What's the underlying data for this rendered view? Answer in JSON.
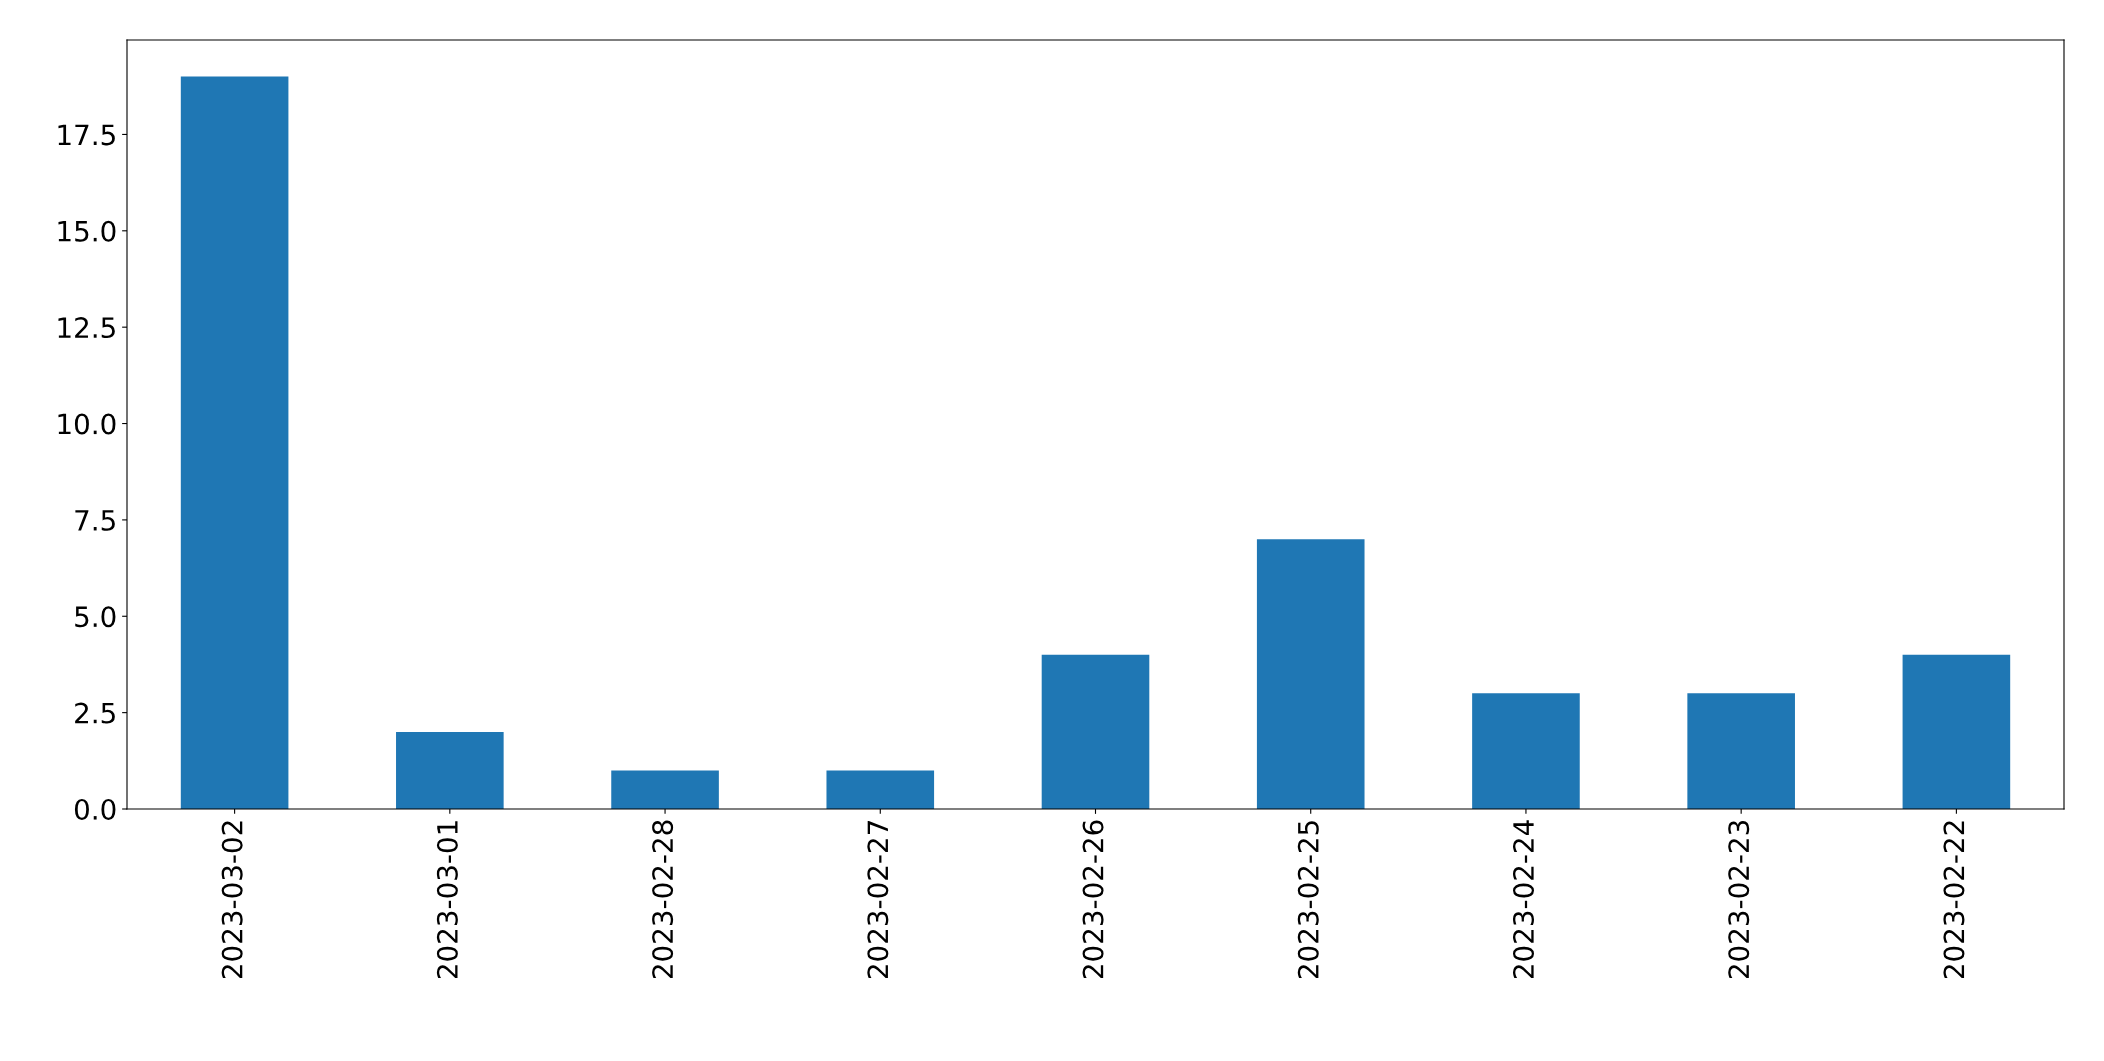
{
  "chart_data": {
    "type": "bar",
    "categories": [
      "2023-03-02",
      "2023-03-01",
      "2023-02-28",
      "2023-02-27",
      "2023-02-26",
      "2023-02-25",
      "2023-02-24",
      "2023-02-23",
      "2023-02-22"
    ],
    "values": [
      19,
      2,
      1,
      1,
      4,
      7,
      3,
      3,
      4
    ],
    "color": "#1f77b4",
    "ylim": [
      0,
      19.95
    ],
    "yticks": [
      {
        "value": 0,
        "label": "0.0"
      },
      {
        "value": 2.5,
        "label": "2.5"
      },
      {
        "value": 5,
        "label": "5.0"
      },
      {
        "value": 7.5,
        "label": "7.5"
      },
      {
        "value": 10,
        "label": "10.0"
      },
      {
        "value": 12.5,
        "label": "12.5"
      },
      {
        "value": 15,
        "label": "15.0"
      },
      {
        "value": 17.5,
        "label": "17.5"
      }
    ],
    "grid": false,
    "legend": false
  }
}
